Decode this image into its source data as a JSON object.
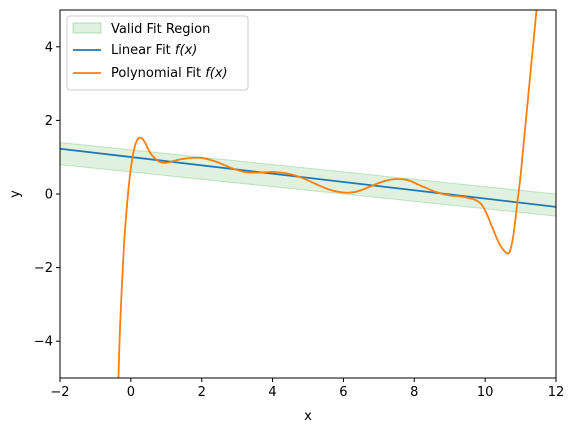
{
  "chart_data": {
    "type": "line",
    "xlabel": "x",
    "ylabel": "y",
    "xlim": [
      -2,
      12
    ],
    "ylim": [
      -5,
      5
    ],
    "xticks": [
      -2,
      0,
      2,
      4,
      6,
      8,
      10,
      12
    ],
    "yticks": [
      -4,
      -2,
      0,
      2,
      4
    ],
    "xtick_labels": [
      "−2",
      "0",
      "2",
      "4",
      "6",
      "8",
      "10",
      "12"
    ],
    "ytick_labels": [
      "−4",
      "−2",
      "0",
      "2",
      "4"
    ],
    "legend_position": "top-left",
    "colors": {
      "band": "#2ca02c",
      "linear": "#1f77b4",
      "poly": "#ff7f0e"
    },
    "series": [
      {
        "name": "Valid Fit Region",
        "legend_label": "Valid Fit Region",
        "kind": "band",
        "x": [
          -2,
          12
        ],
        "lower": [
          0.8,
          -0.6
        ],
        "upper": [
          1.4,
          0.0
        ]
      },
      {
        "name": "Linear Fit f(x)",
        "legend_label": "Linear Fit ",
        "legend_fx": "f(x)",
        "kind": "line",
        "x": [
          -2,
          12
        ],
        "y": [
          1.23,
          -0.35
        ]
      },
      {
        "name": "Polynomial Fit f(x)",
        "legend_label": "Polynomial Fit ",
        "legend_fx": "f(x)",
        "kind": "line",
        "x": [
          -0.35,
          -0.3,
          -0.2,
          -0.1,
          0.0,
          0.1,
          0.2,
          0.3,
          0.4,
          0.5,
          0.6,
          0.8,
          1.0,
          1.3,
          1.6,
          2.0,
          2.4,
          2.8,
          3.2,
          3.6,
          4.0,
          4.4,
          4.8,
          5.2,
          5.6,
          6.0,
          6.3,
          6.6,
          7.0,
          7.4,
          7.8,
          8.2,
          8.6,
          9.0,
          9.4,
          9.8,
          10.0,
          10.2,
          10.4,
          10.6,
          10.7,
          10.8,
          10.9,
          11.0,
          11.1,
          11.2,
          11.3,
          11.4,
          11.5,
          11.6
        ],
        "y": [
          -5.0,
          -3.5,
          -1.5,
          -0.2,
          0.7,
          1.25,
          1.5,
          1.52,
          1.4,
          1.2,
          1.05,
          0.88,
          0.85,
          0.92,
          0.97,
          0.98,
          0.88,
          0.72,
          0.6,
          0.58,
          0.6,
          0.56,
          0.45,
          0.28,
          0.12,
          0.04,
          0.05,
          0.14,
          0.3,
          0.4,
          0.38,
          0.22,
          0.06,
          -0.04,
          -0.08,
          -0.2,
          -0.45,
          -0.9,
          -1.35,
          -1.6,
          -1.55,
          -1.1,
          -0.3,
          0.5,
          1.5,
          2.5,
          3.5,
          4.5,
          5.5,
          6.5
        ]
      }
    ]
  }
}
